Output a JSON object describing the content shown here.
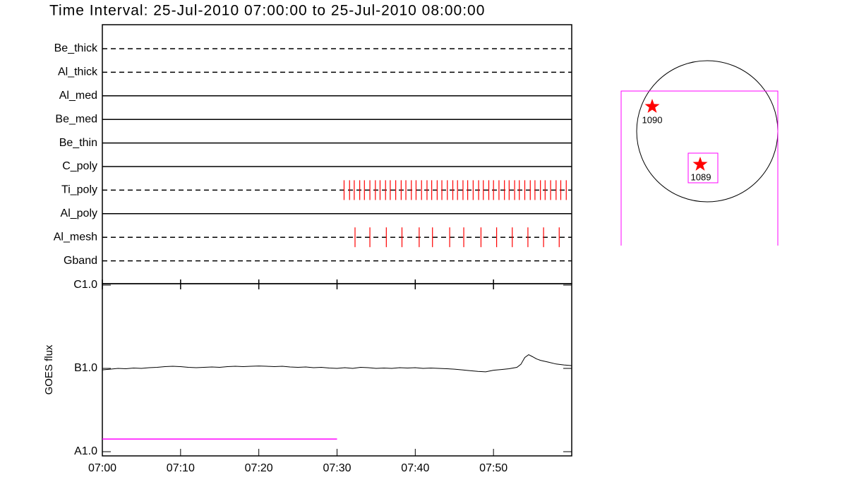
{
  "chart_data": [
    {
      "type": "timeline",
      "title": "Time Interval: 25-Jul-2010 07:00:00 to 25-Jul-2010 08:00:00",
      "categories": [
        "Be_thick",
        "Al_thick",
        "Al_med",
        "Be_med",
        "Be_thin",
        "C_poly",
        "Ti_poly",
        "Al_poly",
        "Al_mesh",
        "Gband"
      ],
      "line_styles": [
        "dashed",
        "dashed",
        "solid",
        "solid",
        "solid",
        "solid",
        "dashed",
        "solid",
        "dashed",
        "dashed"
      ],
      "events": [
        [],
        [],
        [],
        [],
        [],
        [],
        [
          30.9,
          31.6,
          32.2,
          32.9,
          33.5,
          34.2,
          34.9,
          35.5,
          36.2,
          36.8,
          37.5,
          38.2,
          38.8,
          39.5,
          40.1,
          40.8,
          41.5,
          42.1,
          42.8,
          43.4,
          44.1,
          44.8,
          45.4,
          46.1,
          46.7,
          47.4,
          48.1,
          48.7,
          49.4,
          50.0,
          50.7,
          51.4,
          52.0,
          52.7,
          53.3,
          54.0,
          54.7,
          55.3,
          56.0,
          56.6,
          57.3,
          58.0,
          58.6,
          59.3
        ],
        [],
        [
          32.3,
          34.2,
          36.3,
          38.3,
          40.5,
          42.2,
          44.4,
          46.2,
          48.4,
          50.4,
          52.4,
          54.4,
          56.4,
          58.4
        ],
        []
      ],
      "event_color": "#ff0000",
      "xlim": [
        0,
        60
      ]
    },
    {
      "type": "line",
      "ylabel": "GOES flux",
      "log_scale": true,
      "xlim": [
        0,
        60
      ],
      "xticks": [
        {
          "value": 0,
          "label": "07:00"
        },
        {
          "value": 10,
          "label": "07:10"
        },
        {
          "value": 20,
          "label": "07:20"
        },
        {
          "value": 30,
          "label": "07:30"
        },
        {
          "value": 40,
          "label": "07:40"
        },
        {
          "value": 50,
          "label": "07:50"
        }
      ],
      "ylim": [
        8.9e-08,
        1.04e-05
      ],
      "yticks": [
        {
          "value": 1e-07,
          "label": "A1.0"
        },
        {
          "value": 1e-06,
          "label": "B1.0"
        },
        {
          "value": 1e-05,
          "label": "C1.0"
        }
      ],
      "series": [
        {
          "color": "#000000",
          "x": [
            0,
            1,
            2,
            3,
            4,
            5,
            6,
            7,
            8,
            9,
            10,
            11,
            12,
            13,
            14,
            15,
            16,
            17,
            18,
            19,
            20,
            21,
            22,
            23,
            24,
            25,
            26,
            27,
            28,
            29,
            30,
            31,
            32,
            33,
            34,
            35,
            36,
            37,
            38,
            39,
            40,
            41,
            42,
            43,
            44,
            45,
            46,
            47,
            48,
            49,
            50,
            51,
            52,
            53,
            53.5,
            54,
            54.5,
            55,
            55.5,
            56,
            57,
            58,
            59,
            60
          ],
          "values": [
            9.6e-07,
            9.8e-07,
            1e-06,
            9.9e-07,
            1.01e-06,
            1e-06,
            1.02e-06,
            1.03e-06,
            1.05e-06,
            1.06e-06,
            1.05e-06,
            1.03e-06,
            1.02e-06,
            1.03e-06,
            1.04e-06,
            1.03e-06,
            1.05e-06,
            1.06e-06,
            1.05e-06,
            1.06e-06,
            1.07e-06,
            1.06e-06,
            1.05e-06,
            1.06e-06,
            1.04e-06,
            1.03e-06,
            1.04e-06,
            1.02e-06,
            1.03e-06,
            1.01e-06,
            1e-06,
            1.02e-06,
            1e-06,
            1.03e-06,
            1.02e-06,
            1e-06,
            1.01e-06,
            1e-06,
            1.02e-06,
            1.01e-06,
            1.02e-06,
            1e-06,
            1.01e-06,
            1e-06,
            9.9e-07,
            9.8e-07,
            9.6e-07,
            9.4e-07,
            9.2e-07,
            9.1e-07,
            9.5e-07,
            9.7e-07,
            9.9e-07,
            1.03e-06,
            1.12e-06,
            1.35e-06,
            1.46e-06,
            1.38e-06,
            1.3e-06,
            1.25e-06,
            1.19e-06,
            1.13e-06,
            1.1e-06,
            1.08e-06
          ]
        },
        {
          "color": "#ff00ff",
          "x": [
            0,
            30
          ],
          "values": [
            1.42e-07,
            1.42e-07
          ]
        }
      ]
    }
  ],
  "map": {
    "regions": [
      "1090",
      "1089"
    ],
    "color": "#ff00ff",
    "marker_color": "#ff0000"
  }
}
